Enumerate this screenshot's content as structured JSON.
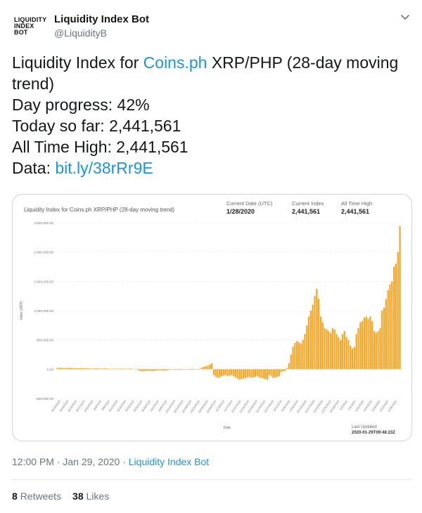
{
  "account": {
    "avatar_lines": [
      "LIQUIDITY",
      "INDEX",
      "BOT"
    ],
    "name": "Liquidity Index Bot",
    "handle": "@LiquidityB",
    "caret_icon": "chevron-down-icon"
  },
  "tweet": {
    "line1_prefix": "Liquidity Index for ",
    "line1_link": "Coins.ph",
    "line1_suffix": " XRP/PHP (28-day moving",
    "line2": "trend)",
    "line3": "Day progress: 42%",
    "line4": "Today so far: 2,441,561",
    "line5": "All Time High: 2,441,561",
    "line6_prefix": "Data: ",
    "line6_link": "bit.ly/38rRr9E",
    "link_color": "#1b95e0"
  },
  "card": {
    "chart_title": "Liquidity Index for Coins.ph XRP/PHP (28-day moving trend)",
    "current_date_label": "Current Date (UTC)",
    "current_date_value": "1/28/2020",
    "current_index_label": "Current Index",
    "current_index_value": "2,441,561",
    "ath_label": "All Time High",
    "ath_value": "2,441,561",
    "last_updated_label": "Last Updated",
    "last_updated_value": "2020-01-29T09:48:23Z"
  },
  "chart_data": {
    "type": "bar",
    "title": "Liquidity Index for Coins.ph XRP/PHP (28-day moving trend)",
    "xlabel": "Date",
    "ylabel": "Index (XRP)",
    "ylim": [
      -500000,
      2500000
    ],
    "yticks": [
      {
        "v": 2500000,
        "label": "2,500,000.00"
      },
      {
        "v": 2000000,
        "label": "2,000,000.00"
      },
      {
        "v": 1500000,
        "label": "1,500,000.00"
      },
      {
        "v": 1000000,
        "label": "1,000,000.00"
      },
      {
        "v": 500000,
        "label": "500,000.00"
      },
      {
        "v": 0,
        "label": "0.00"
      },
      {
        "v": -500000,
        "label": "-500,000.00"
      }
    ],
    "bar_color": "#f5a623",
    "grid": true,
    "xtick_labels": [
      "8/15/2019",
      "8/19/2019",
      "8/23/2019",
      "8/27/2019",
      "8/31/2019",
      "9/4/2019",
      "9/8/2019",
      "9/12/2019",
      "9/16/2019",
      "9/20/2019",
      "9/24/2019",
      "9/28/2019",
      "10/2/2019",
      "10/6/2019",
      "10/10/2019",
      "10/14/2019",
      "10/18/2019",
      "10/22/2019",
      "10/26/2019",
      "10/30/2019",
      "11/3/2019",
      "11/7/2019",
      "11/11/2019",
      "11/15/2019",
      "11/19/2019",
      "11/23/2019",
      "11/27/2019",
      "12/1/2019",
      "12/5/2019",
      "12/9/2019",
      "12/13/2019",
      "12/17/2019",
      "12/21/2019",
      "12/25/2019",
      "12/29/2019",
      "1/2/2020",
      "1/6/2020",
      "1/10/2020",
      "1/14/2020",
      "1/18/2020",
      "1/22/2020",
      "1/26/2020"
    ],
    "values": [
      20000,
      22000,
      25000,
      20000,
      18000,
      22000,
      24000,
      20000,
      18000,
      16000,
      15000,
      18000,
      20000,
      17000,
      15000,
      14000,
      13000,
      12000,
      10000,
      12000,
      15000,
      12000,
      10000,
      12000,
      14000,
      12000,
      10000,
      8000,
      9000,
      10000,
      8000,
      9000,
      10000,
      12000,
      10000,
      8000,
      10000,
      12000,
      8000,
      6000,
      5000,
      -20000,
      -30000,
      -40000,
      -35000,
      -30000,
      -25000,
      -30000,
      -35000,
      -30000,
      -25000,
      -20000,
      -15000,
      -20000,
      -25000,
      -20000,
      -15000,
      -10000,
      -5000,
      -10000,
      -15000,
      -10000,
      -12000,
      -10000,
      -8000,
      -5000,
      -8000,
      -10000,
      -12000,
      -10000,
      -8000,
      -5000,
      10000,
      30000,
      40000,
      50000,
      60000,
      80000,
      100000,
      -100000,
      -130000,
      -150000,
      -140000,
      -120000,
      -110000,
      -100000,
      -120000,
      -110000,
      -100000,
      -120000,
      -140000,
      -160000,
      -180000,
      -170000,
      -160000,
      -150000,
      -140000,
      -130000,
      -150000,
      -140000,
      -130000,
      -120000,
      -140000,
      -150000,
      -160000,
      -170000,
      -180000,
      -100000,
      -120000,
      -150000,
      -140000,
      -130000,
      -120000,
      -50000,
      -40000,
      -30000,
      20000,
      100000,
      250000,
      380000,
      450000,
      480000,
      460000,
      440000,
      500000,
      600000,
      750000,
      900000,
      1000000,
      1100000,
      1250000,
      1370000,
      1200000,
      900000,
      800000,
      700000,
      680000,
      650000,
      620000,
      700000,
      680000,
      600000,
      550000,
      500000,
      600000,
      650000,
      550000,
      500000,
      400000,
      350000,
      380000,
      600000,
      700000,
      800000,
      820000,
      880000,
      900000,
      860000,
      900000,
      820000,
      650000,
      620000,
      650000,
      700000,
      1000000,
      1050000,
      1200000,
      1350000,
      1450000,
      1500000,
      1750000,
      1800000,
      2000000,
      2441561
    ]
  },
  "footer": {
    "time": "12:00 PM · Jan 29, 2020 · ",
    "source": "Liquidity Index Bot",
    "retweets_count": "8",
    "retweets_label": "Retweets",
    "likes_count": "38",
    "likes_label": "Likes"
  }
}
